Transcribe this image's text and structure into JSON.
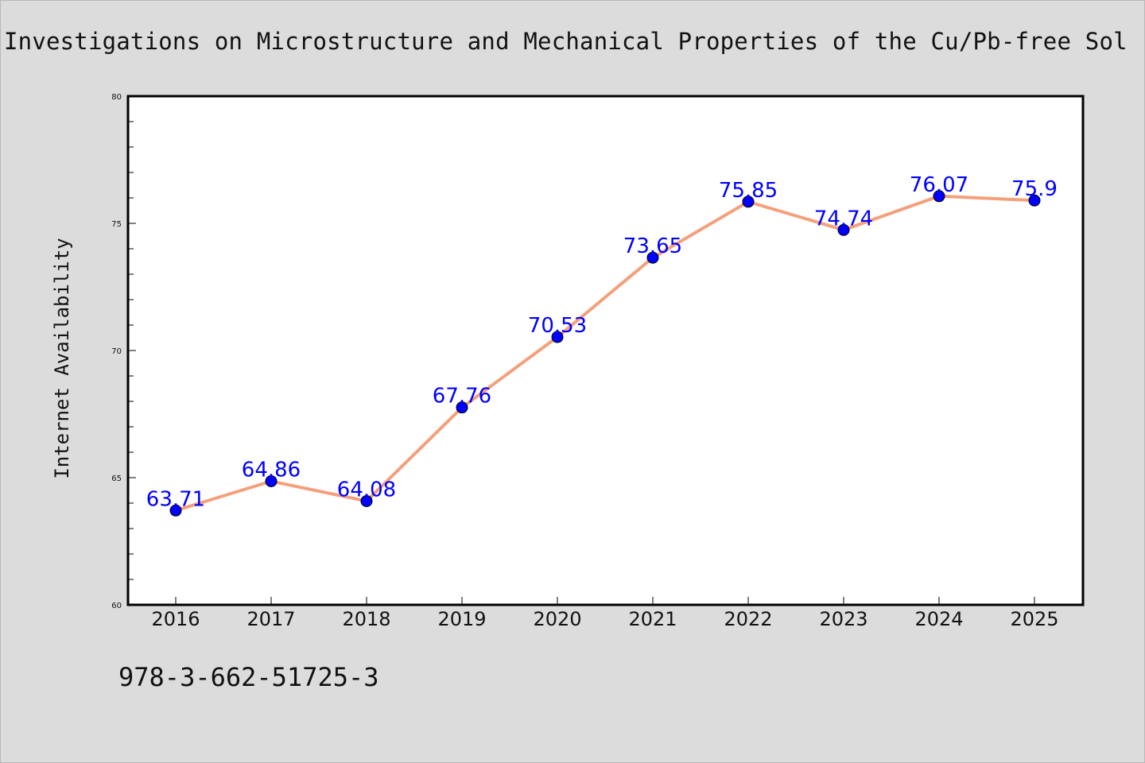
{
  "header": {
    "title": "Investigations on Microstructure and Mechanical Properties of the Cu/Pb-free Sol"
  },
  "footer": {
    "text": "978-3-662-51725-3"
  },
  "chart_data": {
    "type": "line",
    "title": "Investigations on Microstructure and Mechanical Properties of the Cu/Pb-free Sol",
    "xlabel": "",
    "ylabel": "Internet Availability",
    "categories": [
      "2016",
      "2017",
      "2018",
      "2019",
      "2020",
      "2021",
      "2022",
      "2023",
      "2024",
      "2025"
    ],
    "values": [
      63.71,
      64.86,
      64.08,
      67.76,
      70.53,
      73.65,
      75.85,
      74.74,
      76.07,
      75.9
    ],
    "data_labels": [
      "63.71",
      "64.86",
      "64.08",
      "67.76",
      "70.53",
      "73.65",
      "75.85",
      "74.74",
      "76.07",
      "75.9"
    ],
    "ylim": [
      60,
      80
    ],
    "yticks": [
      60,
      65,
      70,
      75,
      80
    ],
    "grid": false,
    "legend": "none",
    "colors": {
      "line": "#f4a07c",
      "marker": "#0000ff",
      "data_label": "#0000ff",
      "plot_background": "#ffffff",
      "page_background": "#dcdcdc"
    }
  }
}
